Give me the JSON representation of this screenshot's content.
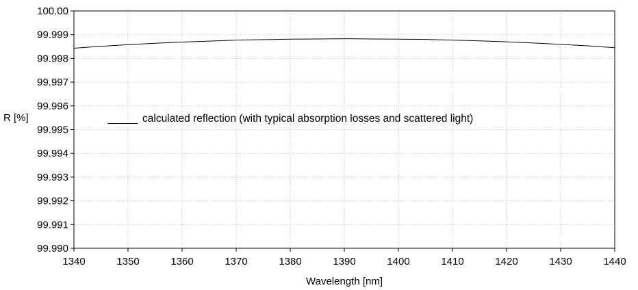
{
  "chart_data": {
    "type": "line",
    "title": "",
    "xlabel": "Wavelength [nm]",
    "ylabel": "R [%]",
    "xlim": [
      1340,
      1440
    ],
    "ylim": [
      99.99,
      100.0
    ],
    "x_ticks": [
      1340,
      1350,
      1360,
      1370,
      1380,
      1390,
      1400,
      1410,
      1420,
      1430,
      1440
    ],
    "x_tick_labels": [
      "1340",
      "1350",
      "1360",
      "1370",
      "1380",
      "1390",
      "1400",
      "1410",
      "1420",
      "1430",
      "1440"
    ],
    "y_ticks": [
      99.99,
      99.991,
      99.992,
      99.993,
      99.994,
      99.995,
      99.996,
      99.997,
      99.998,
      99.999,
      100.0
    ],
    "y_tick_labels": [
      "99.990",
      "99.991",
      "99.992",
      "99.993",
      "99.994",
      "99.995",
      "99.996",
      "99.997",
      "99.998",
      "99.999",
      "100.00"
    ],
    "grid": true,
    "legend_position": "center-left",
    "series": [
      {
        "name": "calculated reflection (with typical absorption losses and scattered light)",
        "color": "#000000",
        "x": [
          1340,
          1345,
          1350,
          1355,
          1360,
          1365,
          1370,
          1375,
          1380,
          1385,
          1390,
          1395,
          1400,
          1405,
          1410,
          1415,
          1420,
          1425,
          1430,
          1435,
          1440
        ],
        "y": [
          99.99843,
          99.99851,
          99.99858,
          99.99864,
          99.99869,
          99.99873,
          99.99877,
          99.99879,
          99.99881,
          99.99882,
          99.99883,
          99.99882,
          99.99881,
          99.9988,
          99.99877,
          99.99874,
          99.9987,
          99.99865,
          99.99859,
          99.99853,
          99.99845
        ]
      }
    ]
  }
}
